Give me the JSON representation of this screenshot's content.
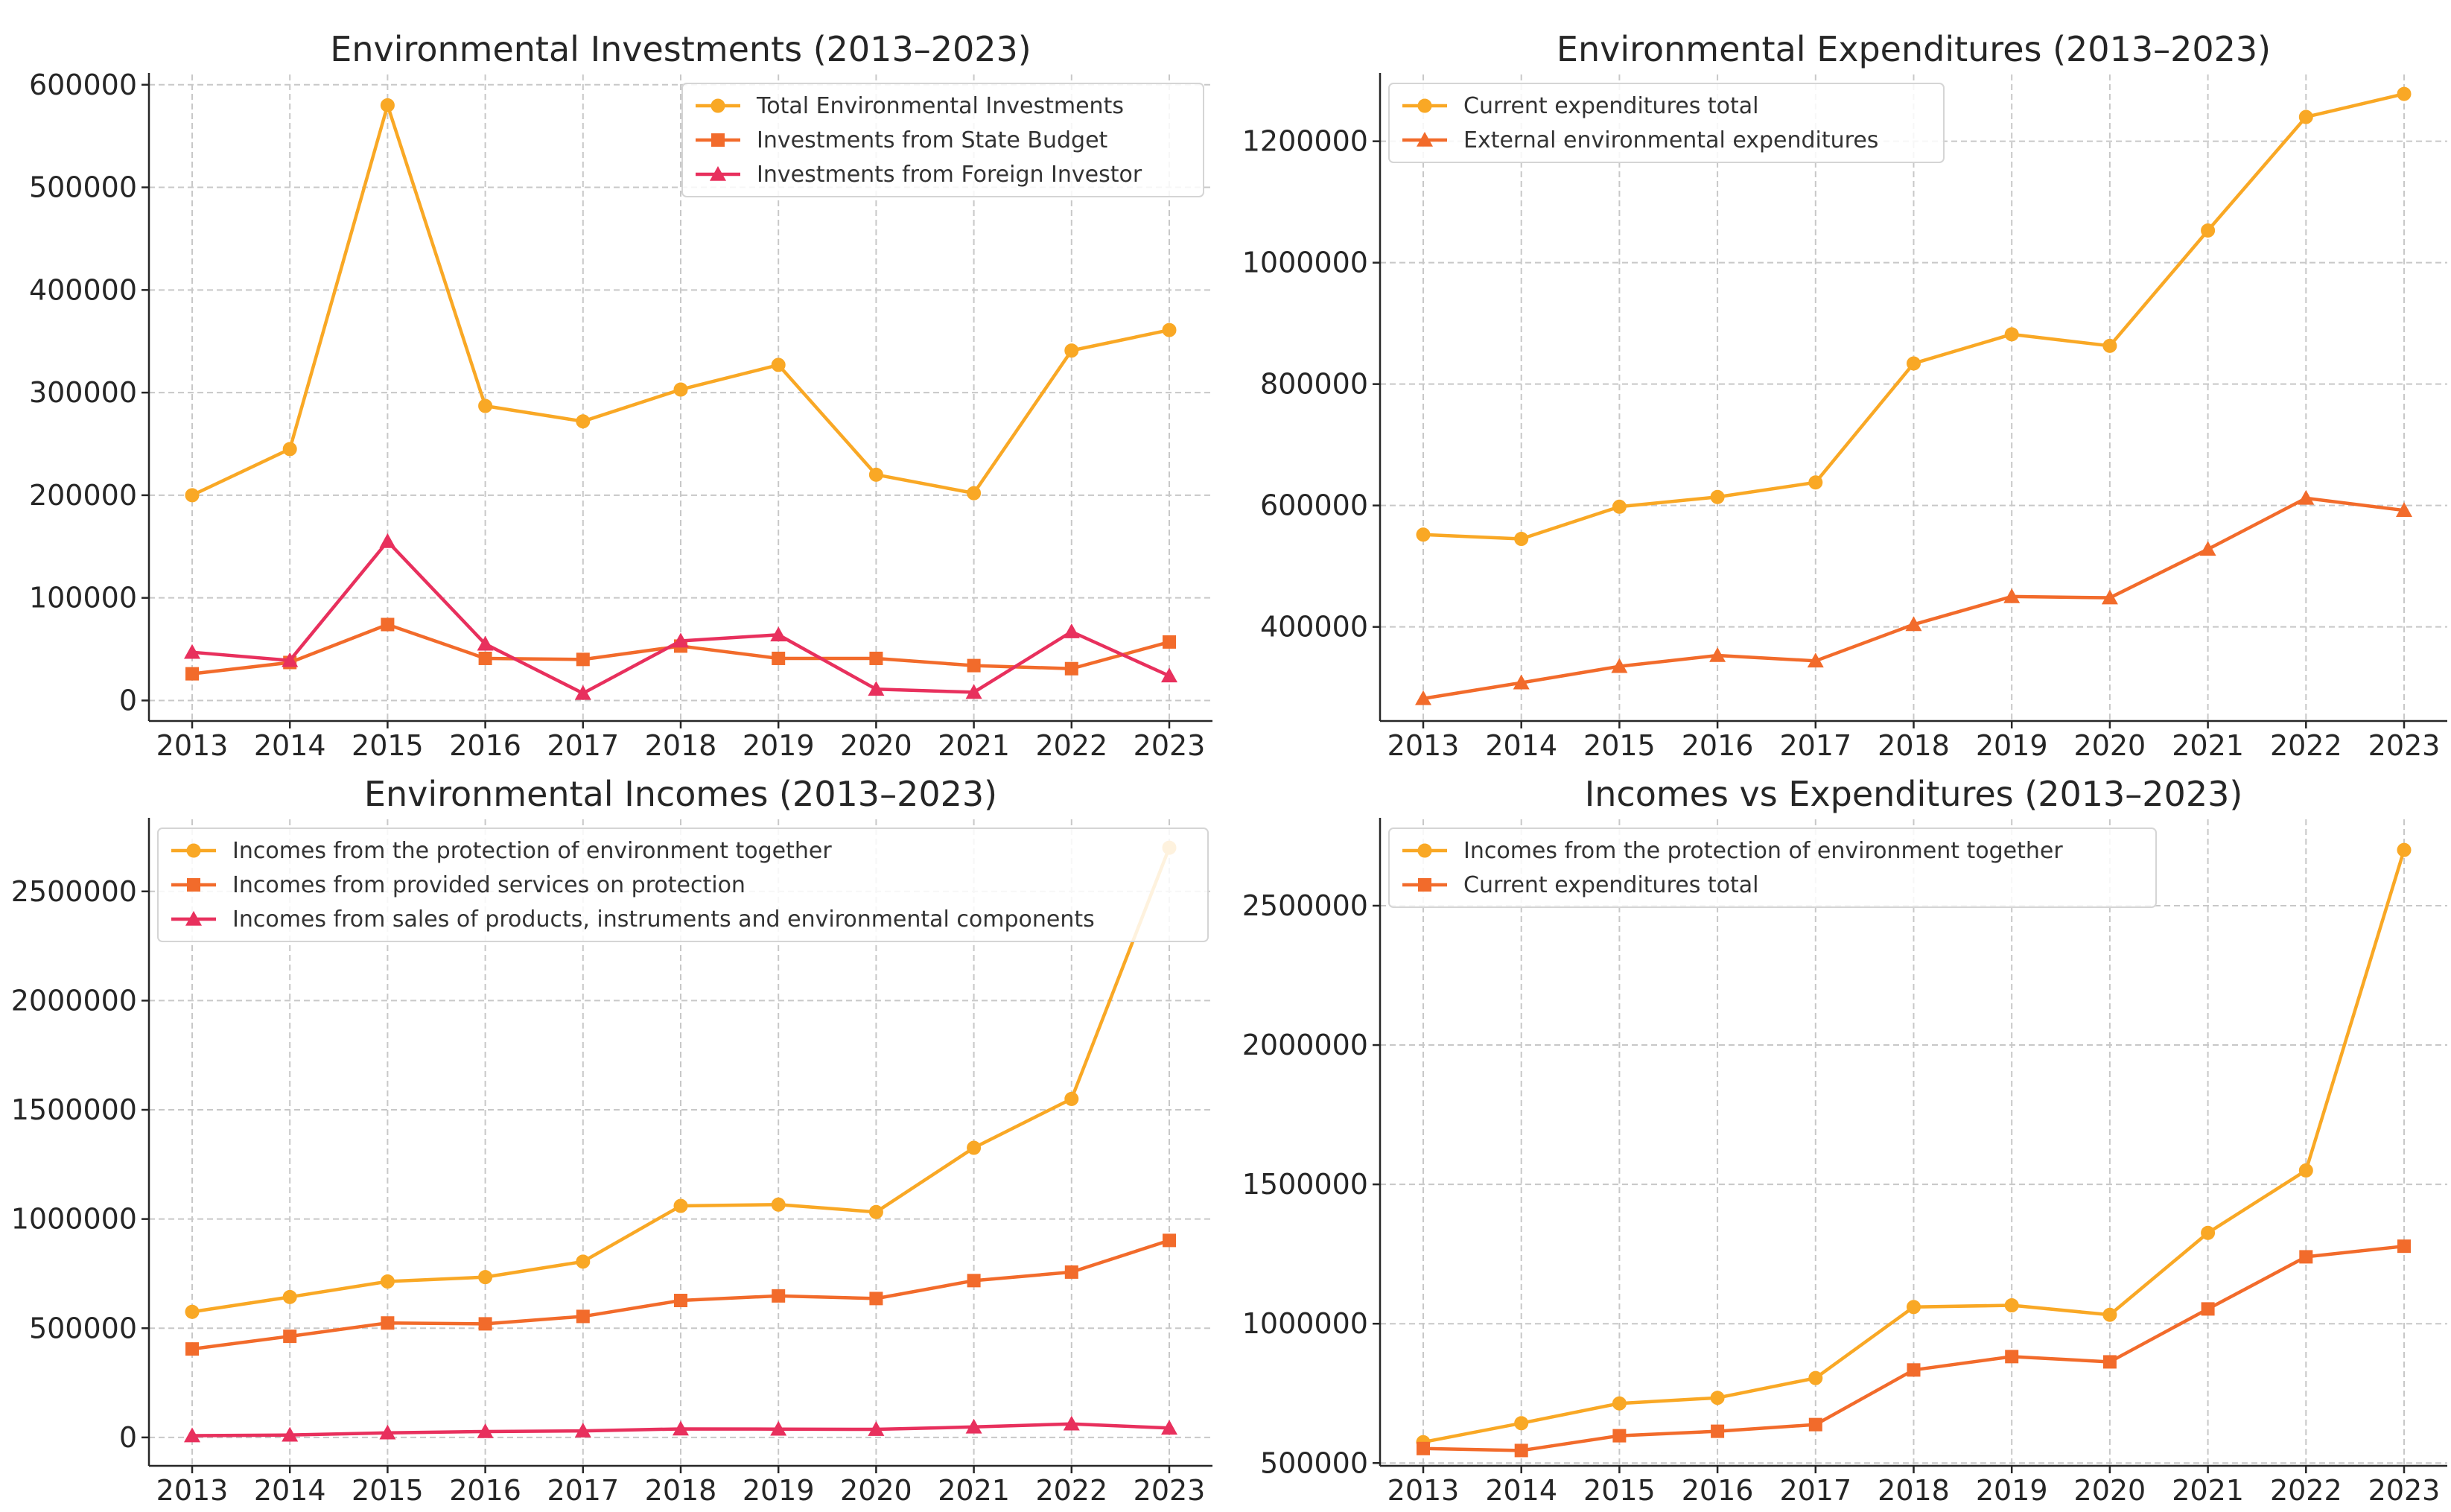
{
  "colors": {
    "yellow": "#f9a825",
    "orange": "#f26b2b",
    "pink": "#e8305d"
  },
  "chart_data": [
    {
      "type": "line",
      "title": "Environmental Investments (2013–2023)",
      "xlabel": "",
      "ylabel": "",
      "categories": [
        "2013",
        "2014",
        "2015",
        "2016",
        "2017",
        "2018",
        "2019",
        "2020",
        "2021",
        "2022",
        "2023"
      ],
      "ylim": [
        -20000,
        610000
      ],
      "yticks": [
        0,
        100000,
        200000,
        300000,
        400000,
        500000,
        600000
      ],
      "legend_position": "top-right",
      "series": [
        {
          "name": "Total Environmental Investments",
          "color": "yellow",
          "marker": "circle",
          "values": [
            200000,
            245000,
            580000,
            287000,
            272000,
            303000,
            327000,
            220000,
            202000,
            341000,
            361000
          ]
        },
        {
          "name": "Investments from State Budget",
          "color": "orange",
          "marker": "square",
          "values": [
            26000,
            37000,
            74000,
            41000,
            40000,
            53000,
            41000,
            41000,
            34000,
            31000,
            57000
          ]
        },
        {
          "name": "Investments from Foreign Investor",
          "color": "pink",
          "marker": "triangle",
          "values": [
            47000,
            39000,
            155000,
            55000,
            7000,
            58000,
            64000,
            11000,
            8000,
            67000,
            24000
          ]
        }
      ]
    },
    {
      "type": "line",
      "title": "Environmental Expenditures (2013–2023)",
      "xlabel": "",
      "ylabel": "",
      "categories": [
        "2013",
        "2014",
        "2015",
        "2016",
        "2017",
        "2018",
        "2019",
        "2020",
        "2021",
        "2022",
        "2023"
      ],
      "ylim": [
        245000,
        1310000
      ],
      "yticks": [
        400000,
        600000,
        800000,
        1000000,
        1200000
      ],
      "legend_position": "top-left",
      "series": [
        {
          "name": "Current expenditures total",
          "color": "yellow",
          "marker": "circle",
          "values": [
            552000,
            545000,
            598000,
            614000,
            638000,
            834000,
            882000,
            863000,
            1053000,
            1240000,
            1278000
          ]
        },
        {
          "name": "External environmental expenditures",
          "color": "orange",
          "marker": "triangle",
          "values": [
            282000,
            308000,
            335000,
            353000,
            344000,
            404000,
            450000,
            448000,
            528000,
            612000,
            592000
          ]
        }
      ]
    },
    {
      "type": "line",
      "title": "Environmental Incomes (2013–2023)",
      "xlabel": "",
      "ylabel": "",
      "categories": [
        "2013",
        "2014",
        "2015",
        "2016",
        "2017",
        "2018",
        "2019",
        "2020",
        "2021",
        "2022",
        "2023"
      ],
      "ylim": [
        -130000,
        2830000
      ],
      "yticks": [
        0,
        500000,
        1000000,
        1500000,
        2000000,
        2500000
      ],
      "legend_position": "top-left",
      "series": [
        {
          "name": "Incomes from the protection of environment together",
          "color": "yellow",
          "marker": "circle",
          "values": [
            575000,
            643000,
            714000,
            734000,
            805000,
            1060000,
            1066000,
            1032000,
            1326000,
            1550000,
            2700000
          ]
        },
        {
          "name": "Incomes from provided services on protection",
          "color": "orange",
          "marker": "square",
          "values": [
            405000,
            463000,
            524000,
            520000,
            554000,
            627000,
            648000,
            636000,
            718000,
            757000,
            902000
          ]
        },
        {
          "name": "Incomes from sales of products, instruments and environmental components",
          "color": "pink",
          "marker": "triangle",
          "values": [
            8000,
            11000,
            21000,
            27000,
            30000,
            39000,
            38000,
            37000,
            48000,
            62000,
            43000
          ]
        }
      ]
    },
    {
      "type": "line",
      "title": "Incomes vs Expenditures (2013–2023)",
      "xlabel": "",
      "ylabel": "",
      "categories": [
        "2013",
        "2014",
        "2015",
        "2016",
        "2017",
        "2018",
        "2019",
        "2020",
        "2021",
        "2022",
        "2023"
      ],
      "ylim": [
        490000,
        2810000
      ],
      "yticks": [
        500000,
        1000000,
        1500000,
        2000000,
        2500000
      ],
      "legend_position": "top-left",
      "series": [
        {
          "name": "Incomes from the protection of environment together",
          "color": "yellow",
          "marker": "circle",
          "values": [
            575000,
            643000,
            714000,
            734000,
            805000,
            1060000,
            1066000,
            1032000,
            1326000,
            1550000,
            2700000
          ]
        },
        {
          "name": "Current expenditures total",
          "color": "orange",
          "marker": "square",
          "values": [
            552000,
            545000,
            598000,
            614000,
            638000,
            834000,
            882000,
            863000,
            1053000,
            1240000,
            1278000
          ]
        }
      ]
    }
  ]
}
